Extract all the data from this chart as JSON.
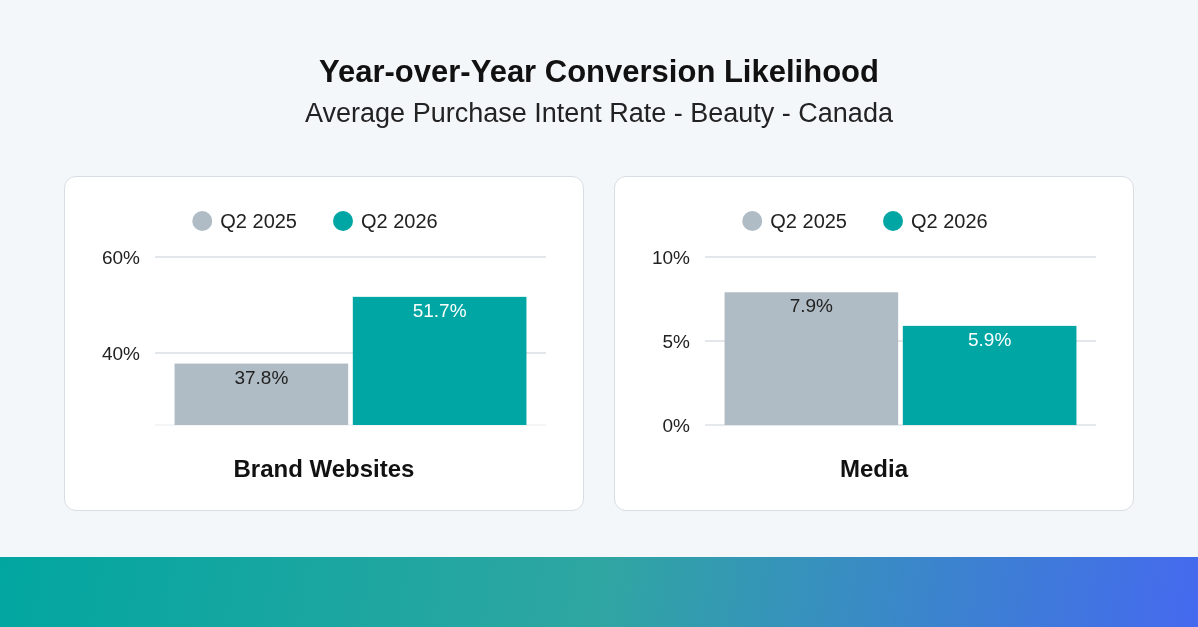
{
  "chart_data": [
    {
      "type": "bar",
      "title": "Year-over-Year Conversion Likelihood",
      "subtitle": "Average Purchase Intent Rate - Beauty - Canada",
      "xlabel": "Brand Websites",
      "categories": [
        null
      ],
      "series": [
        {
          "name": "Q2 2025",
          "color": "#b0bcc5",
          "values": [
            37.8
          ],
          "value_labels": [
            "37.8%"
          ]
        },
        {
          "name": "Q2 2026",
          "color": "#00a6a4",
          "values": [
            51.7
          ],
          "value_labels": [
            "51.7%"
          ]
        }
      ],
      "ylim": [
        25,
        60
      ],
      "yticks": [
        {
          "value": 40,
          "label": "40%"
        },
        {
          "value": 60,
          "label": "60%"
        }
      ],
      "grid": "y",
      "legend": "top"
    },
    {
      "type": "bar",
      "xlabel": "Media",
      "categories": [
        null
      ],
      "series": [
        {
          "name": "Q2 2025",
          "color": "#b0bcc5",
          "values": [
            7.9
          ],
          "value_labels": [
            "7.9%"
          ]
        },
        {
          "name": "Q2 2026",
          "color": "#00a6a4",
          "values": [
            5.9
          ],
          "value_labels": [
            "5.9%"
          ]
        }
      ],
      "ylim": [
        0,
        10
      ],
      "yticks": [
        {
          "value": 0,
          "label": "0%"
        },
        {
          "value": 5,
          "label": "5%"
        },
        {
          "value": 10,
          "label": "10%"
        }
      ],
      "grid": "y",
      "legend": "top"
    }
  ]
}
